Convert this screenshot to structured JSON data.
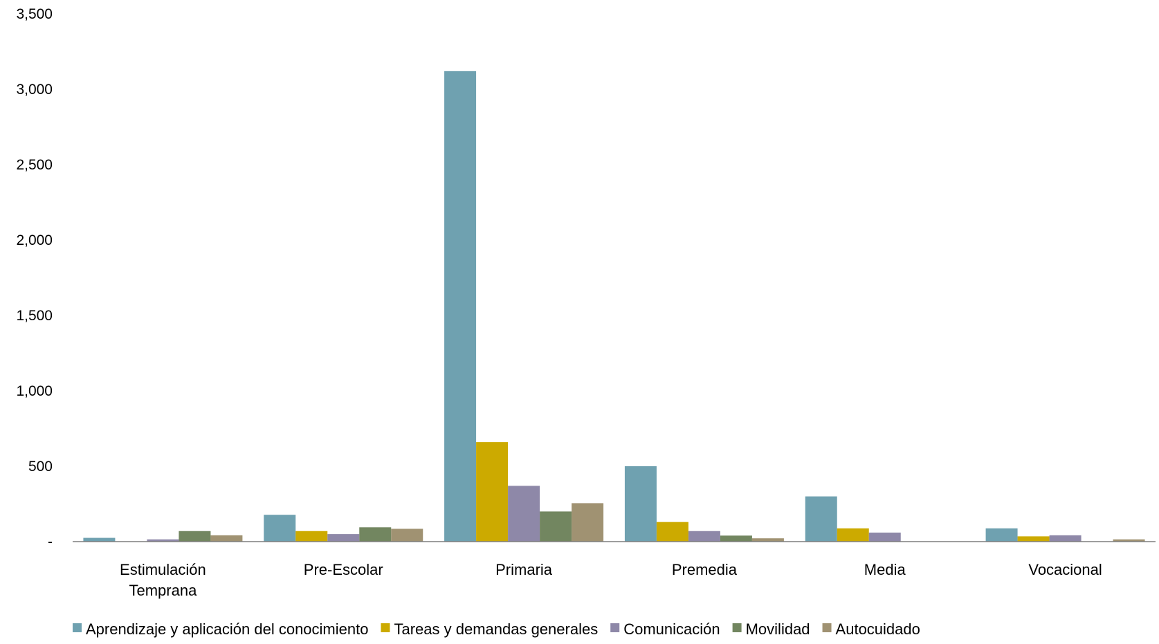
{
  "chart_data": {
    "type": "bar",
    "title": "",
    "xlabel": "",
    "ylabel": "",
    "ylim": [
      0,
      3500
    ],
    "yticks": [
      0,
      500,
      1000,
      1500,
      2000,
      2500,
      3000,
      3500
    ],
    "ytick_labels": [
      "-",
      "500",
      "1,000",
      "1,500",
      "2,000",
      "2,500",
      "3,000",
      "3,500"
    ],
    "grid": false,
    "legend_position": "bottom",
    "categories": [
      [
        "Estimulación",
        "Temprana"
      ],
      [
        "Pre-Escolar"
      ],
      [
        "Primaria"
      ],
      [
        "Premedia"
      ],
      [
        "Media"
      ],
      [
        "Vocacional"
      ]
    ],
    "series": [
      {
        "name": "Aprendizaje y aplicación del conocimiento",
        "color": "#6fa1b0",
        "values": [
          25,
          178,
          3120,
          500,
          300,
          88
        ]
      },
      {
        "name": "Tareas y demandas generales",
        "color": "#ccaa00",
        "values": [
          0,
          70,
          660,
          130,
          88,
          35
        ]
      },
      {
        "name": "Comunicación",
        "color": "#8e88a8",
        "values": [
          15,
          50,
          370,
          70,
          60,
          42
        ]
      },
      {
        "name": "Movilidad",
        "color": "#728660",
        "values": [
          70,
          95,
          200,
          40,
          0,
          0
        ]
      },
      {
        "name": "Autocuidado",
        "color": "#a09272",
        "values": [
          42,
          85,
          255,
          22,
          0,
          15
        ]
      }
    ]
  }
}
